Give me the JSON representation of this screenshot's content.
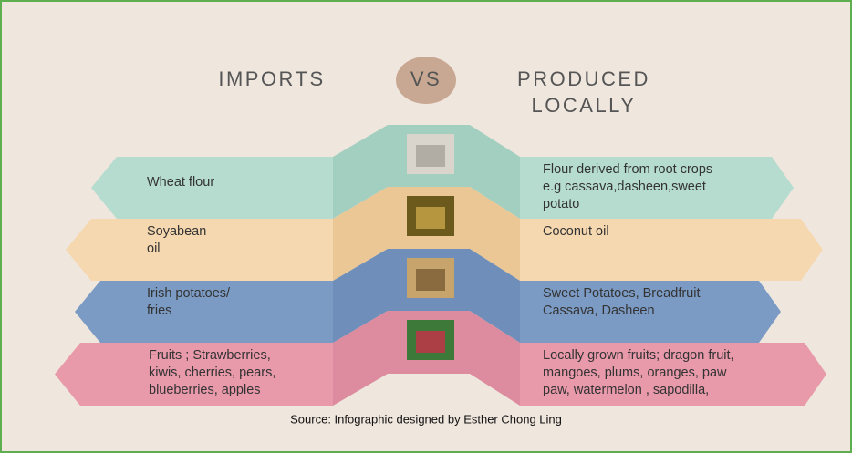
{
  "header": {
    "left": "IMPORTS",
    "vs": "VS",
    "right": [
      "PRODUCED",
      "LOCALLY"
    ]
  },
  "rows": [
    {
      "imported": [
        "Wheat flour"
      ],
      "local": [
        "Flour derived from root crops",
        "e.g cassava,dasheen,sweet",
        "potato"
      ]
    },
    {
      "imported": [
        "Soyabean",
        "oil"
      ],
      "local": [
        "Coconut oil"
      ]
    },
    {
      "imported": [
        "Irish potatoes/",
        "fries"
      ],
      "local": [
        "Sweet Potatoes, Breadfruit",
        "Cassava, Dasheen"
      ]
    },
    {
      "imported": [
        "Fruits ; Strawberries,",
        "kiwis, cherries, pears,",
        "blueberries, apples"
      ],
      "local": [
        "Locally grown fruits; dragon fruit,",
        "mangoes, plums, oranges, paw",
        "paw, watermelon , sapodilla,"
      ]
    }
  ],
  "source": "Source: Infographic designed by Esther Chong Ling"
}
